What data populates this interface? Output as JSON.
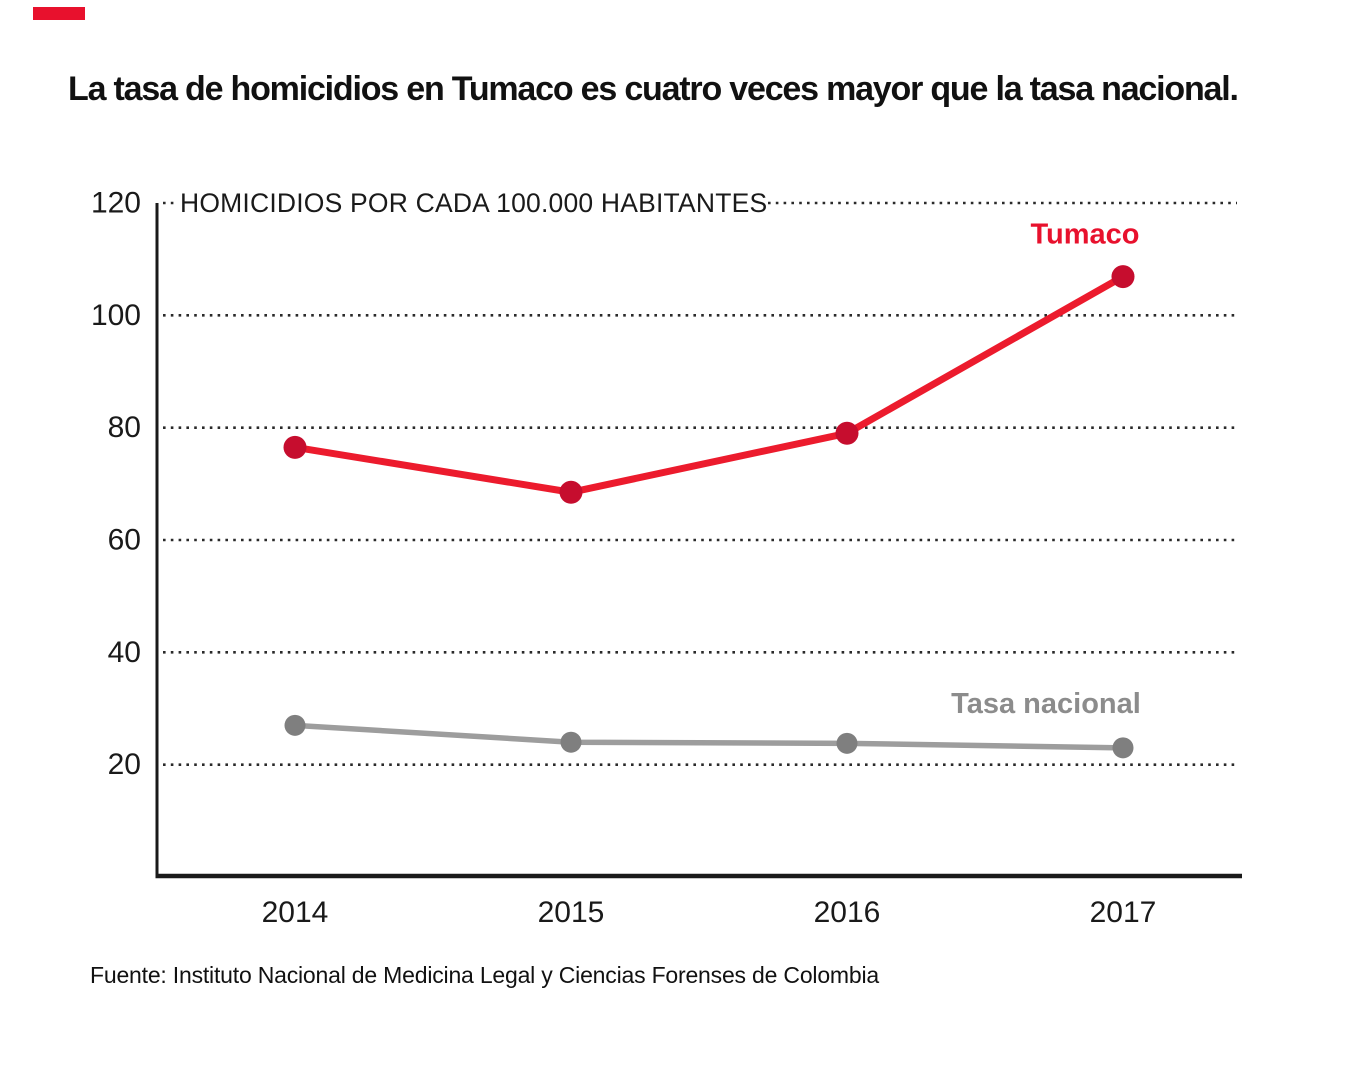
{
  "brand": {
    "color": "#e8112d"
  },
  "title": "La tasa de homicidios en Tumaco es cuatro veces mayor que la tasa nacional.",
  "source": "Fuente: Instituto Nacional de Medicina Legal y Ciencias Forenses de Colombia",
  "chart_data": {
    "type": "line",
    "title": "HOMICIDIOS POR CADA 100.000 HABITANTES",
    "categories": [
      "2014",
      "2015",
      "2016",
      "2017"
    ],
    "series": [
      {
        "name": "Tumaco",
        "values": [
          76.5,
          68.5,
          79,
          106.9
        ],
        "line_color": "#ec1b2d",
        "dot_color": "#c60d2e",
        "label_color": "#e8112d"
      },
      {
        "name": "Tasa nacional",
        "values": [
          27,
          24,
          23.8,
          23
        ],
        "line_color": "#9d9d9d",
        "dot_color": "#7f7f7f",
        "label_color": "#8c8c8c"
      }
    ],
    "yticks": [
      20,
      40,
      60,
      80,
      100,
      120
    ],
    "ylim": [
      0,
      120
    ],
    "grid": "horizontal dotted lines at each y tick",
    "legend_position": "inline series labels near 2017 data points",
    "axis_color": "#1a1a1a",
    "grid_color": "#2a2a2a",
    "text_color": "#1a1a1a"
  }
}
